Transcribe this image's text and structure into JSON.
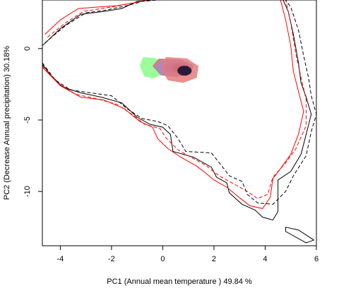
{
  "chart_data": {
    "type": "contour-density",
    "xlabel": "PC1 (Annual mean temperature ) 49.84 %",
    "ylabel": "PC2 (Decrease Annual precipitation) 30.18%",
    "xlim": [
      -4.7,
      6.0
    ],
    "ylim": [
      -13.8,
      3.4
    ],
    "x_ticks": [
      -4,
      -2,
      0,
      2,
      4,
      6
    ],
    "y_ticks": [
      0,
      -5,
      -10
    ],
    "x_tick_labels": [
      "-4",
      "-2",
      "0",
      "2",
      "4",
      "6"
    ],
    "y_tick_labels": [
      "0",
      "-5",
      "-10"
    ],
    "grid": false,
    "series": [
      {
        "kind": "environment-outline",
        "color": "#000000",
        "style": "solid",
        "points": [
          [
            -4.7,
            -1.1
          ],
          [
            -4.4,
            -1.8
          ],
          [
            -3.9,
            -2.7
          ],
          [
            -3.2,
            -3.1
          ],
          [
            -2.4,
            -3.4
          ],
          [
            -1.6,
            -3.8
          ],
          [
            -1.0,
            -4.8
          ],
          [
            -0.5,
            -5.3
          ],
          [
            0.0,
            -5.5
          ],
          [
            0.3,
            -6.0
          ],
          [
            0.4,
            -7.2
          ],
          [
            0.8,
            -7.4
          ],
          [
            1.2,
            -7.6
          ],
          [
            1.9,
            -8.3
          ],
          [
            2.1,
            -9.0
          ],
          [
            2.5,
            -9.4
          ],
          [
            2.6,
            -10.1
          ],
          [
            3.1,
            -10.9
          ],
          [
            3.6,
            -11.3
          ],
          [
            3.9,
            -11.8
          ],
          [
            4.3,
            -12.0
          ],
          [
            4.5,
            -11.4
          ],
          [
            4.5,
            -9.2
          ],
          [
            5.0,
            -8.6
          ],
          [
            5.4,
            -7.4
          ],
          [
            5.6,
            -6.0
          ],
          [
            5.8,
            -4.6
          ],
          [
            5.6,
            -3.4
          ],
          [
            5.4,
            -2.4
          ],
          [
            5.3,
            -1.0
          ],
          [
            5.1,
            1.0
          ],
          [
            4.9,
            2.6
          ],
          [
            4.7,
            3.4
          ]
        ],
        "points2": [
          [
            -4.7,
            0.2
          ],
          [
            -4.0,
            1.4
          ],
          [
            -3.2,
            2.4
          ],
          [
            -2.3,
            2.6
          ],
          [
            -1.6,
            2.8
          ],
          [
            -1.0,
            3.3
          ],
          [
            -0.4,
            3.4
          ]
        ]
      },
      {
        "kind": "environment-outline",
        "color": "#000000",
        "style": "dashed",
        "points": [
          [
            -4.7,
            -1.0
          ],
          [
            -4.2,
            -2.2
          ],
          [
            -3.6,
            -2.9
          ],
          [
            -2.8,
            -3.1
          ],
          [
            -2.0,
            -3.3
          ],
          [
            -1.4,
            -4.2
          ],
          [
            -0.8,
            -4.9
          ],
          [
            -0.2,
            -5.1
          ],
          [
            0.2,
            -5.4
          ],
          [
            0.6,
            -6.3
          ],
          [
            0.9,
            -7.2
          ],
          [
            1.9,
            -7.3
          ],
          [
            2.3,
            -8.2
          ],
          [
            2.6,
            -8.9
          ],
          [
            3.1,
            -9.3
          ],
          [
            3.3,
            -10.2
          ],
          [
            3.7,
            -10.8
          ],
          [
            4.3,
            -10.9
          ],
          [
            4.8,
            -10.0
          ],
          [
            5.1,
            -8.9
          ],
          [
            5.6,
            -7.5
          ],
          [
            5.8,
            -5.8
          ],
          [
            6.0,
            -4.6
          ],
          [
            5.8,
            -3.3
          ],
          [
            5.7,
            -2.1
          ],
          [
            5.5,
            -0.5
          ],
          [
            5.3,
            1.3
          ],
          [
            5.0,
            2.9
          ],
          [
            4.8,
            3.4
          ]
        ],
        "points2": [
          [
            -4.6,
            0.4
          ],
          [
            -3.8,
            1.6
          ],
          [
            -3.0,
            2.5
          ],
          [
            -2.2,
            2.7
          ],
          [
            -1.4,
            3.0
          ],
          [
            -0.8,
            3.3
          ],
          [
            -0.2,
            3.4
          ]
        ]
      },
      {
        "kind": "environment-outline",
        "color": "#ff0000",
        "style": "solid",
        "points": [
          [
            -4.7,
            -1.3
          ],
          [
            -4.0,
            -2.6
          ],
          [
            -3.2,
            -3.4
          ],
          [
            -2.3,
            -3.6
          ],
          [
            -1.5,
            -4.2
          ],
          [
            -0.9,
            -5.1
          ],
          [
            -0.4,
            -5.5
          ],
          [
            -0.2,
            -6.3
          ],
          [
            0.2,
            -7.0
          ],
          [
            0.7,
            -7.6
          ],
          [
            1.3,
            -8.2
          ],
          [
            1.6,
            -8.6
          ],
          [
            2.0,
            -9.2
          ],
          [
            2.5,
            -9.7
          ],
          [
            2.9,
            -10.3
          ],
          [
            3.4,
            -11.0
          ],
          [
            3.9,
            -11.2
          ],
          [
            4.2,
            -10.4
          ],
          [
            4.3,
            -9.1
          ],
          [
            4.6,
            -8.4
          ],
          [
            5.0,
            -7.4
          ],
          [
            5.3,
            -6.0
          ],
          [
            5.5,
            -4.4
          ],
          [
            5.3,
            -3.0
          ],
          [
            5.1,
            -1.6
          ],
          [
            5.0,
            0.2
          ],
          [
            4.8,
            2.0
          ],
          [
            4.6,
            3.4
          ]
        ],
        "points2": [
          [
            -4.6,
            1.0
          ],
          [
            -4.0,
            2.0
          ],
          [
            -3.3,
            2.8
          ],
          [
            -2.6,
            2.9
          ],
          [
            -1.8,
            3.0
          ],
          [
            -1.1,
            3.2
          ],
          [
            -0.6,
            3.4
          ]
        ]
      },
      {
        "kind": "environment-outline",
        "color": "#ff0000",
        "style": "dashed",
        "points": [
          [
            -4.7,
            -1.2
          ],
          [
            -4.1,
            -2.4
          ],
          [
            -3.4,
            -3.2
          ],
          [
            -2.6,
            -3.5
          ],
          [
            -1.8,
            -3.9
          ],
          [
            -1.2,
            -4.6
          ],
          [
            -0.7,
            -5.3
          ],
          [
            -0.1,
            -5.6
          ],
          [
            0.1,
            -6.2
          ],
          [
            0.6,
            -7.1
          ],
          [
            1.1,
            -7.6
          ],
          [
            1.7,
            -8.2
          ],
          [
            2.2,
            -8.9
          ],
          [
            2.8,
            -9.5
          ],
          [
            3.3,
            -10.0
          ],
          [
            3.7,
            -10.5
          ],
          [
            4.1,
            -10.2
          ],
          [
            4.3,
            -9.0
          ],
          [
            4.8,
            -8.0
          ],
          [
            5.2,
            -7.0
          ],
          [
            5.6,
            -5.4
          ],
          [
            5.6,
            -3.6
          ],
          [
            5.4,
            -2.0
          ],
          [
            5.2,
            -0.4
          ],
          [
            5.0,
            1.8
          ],
          [
            4.8,
            3.4
          ]
        ],
        "points2": [
          [
            -4.5,
            0.8
          ],
          [
            -3.8,
            1.8
          ],
          [
            -3.1,
            2.6
          ],
          [
            -2.4,
            2.8
          ],
          [
            -1.7,
            3.0
          ],
          [
            -0.9,
            3.3
          ]
        ]
      }
    ],
    "density_patches": [
      {
        "name": "",
        "color": "#99ff99",
        "x_range": [
          -0.9,
          0.0
        ],
        "y_range": [
          -2.1,
          -0.6
        ]
      },
      {
        "name": "",
        "color": "#6b6bff",
        "x_range": [
          -0.4,
          1.2
        ],
        "y_range": [
          -2.0,
          -0.7
        ]
      },
      {
        "name": "",
        "color": "#e87a7a",
        "x_range": [
          -0.1,
          1.4
        ],
        "y_range": [
          -2.4,
          -0.6
        ]
      }
    ]
  }
}
